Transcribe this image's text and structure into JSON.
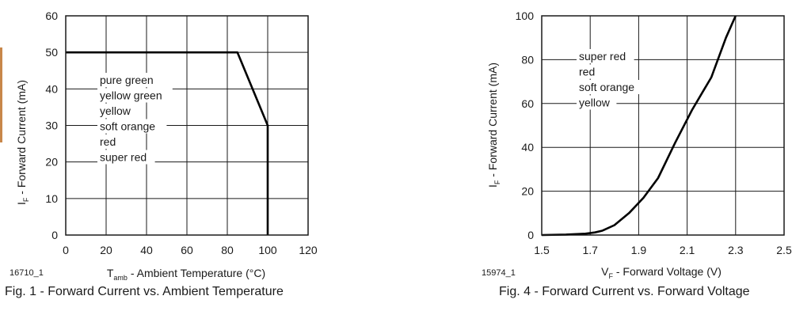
{
  "chart_data": [
    {
      "type": "line",
      "caption": "Fig. 1 - Forward Current vs. Ambient Temperature",
      "figure_id": "16710_1",
      "ylabel": {
        "main": "I",
        "sub": "F",
        "rest": " - Forward Current (mA)"
      },
      "xlabel": {
        "main": "T",
        "sub": "amb",
        "rest": " - Ambient Temperature (°C)"
      },
      "xlim": [
        0,
        120
      ],
      "ylim": [
        0,
        60
      ],
      "xticks": [
        "0",
        "20",
        "40",
        "60",
        "80",
        "100",
        "120"
      ],
      "yticks": [
        "0",
        "10",
        "20",
        "30",
        "40",
        "50",
        "60"
      ],
      "grid": true,
      "legend_text": [
        "pure green",
        "yellow green",
        "yellow",
        "soft orange",
        "red",
        "super red"
      ],
      "series": [
        {
          "x": [
            0,
            85,
            100,
            100
          ],
          "y": [
            50,
            50,
            30,
            0
          ]
        }
      ]
    },
    {
      "type": "line",
      "caption": "Fig. 4 - Forward Current vs. Forward Voltage",
      "figure_id": "15974_1",
      "ylabel": {
        "main": "I",
        "sub": "F",
        "rest": " - Forward Current (mA)"
      },
      "xlabel": {
        "main": "V",
        "sub": "F",
        "rest": " - Forward Voltage (V)"
      },
      "xlim": [
        1.5,
        2.5
      ],
      "ylim": [
        0,
        100
      ],
      "xticks": [
        "1.5",
        "1.7",
        "1.9",
        "2.1",
        "2.3",
        "2.5"
      ],
      "yticks": [
        "0",
        "20",
        "40",
        "60",
        "80",
        "100"
      ],
      "grid": true,
      "legend_text": [
        "super red",
        "red",
        "soft orange",
        "yellow"
      ],
      "series": [
        {
          "x": [
            1.5,
            1.6,
            1.68,
            1.72,
            1.75,
            1.8,
            1.86,
            1.92,
            1.98,
            2.05,
            2.12,
            2.2,
            2.26,
            2.3
          ],
          "y": [
            0,
            0.2,
            0.6,
            1.2,
            2,
            4.5,
            10,
            17,
            26,
            42,
            57,
            72,
            90,
            100
          ]
        }
      ]
    }
  ]
}
